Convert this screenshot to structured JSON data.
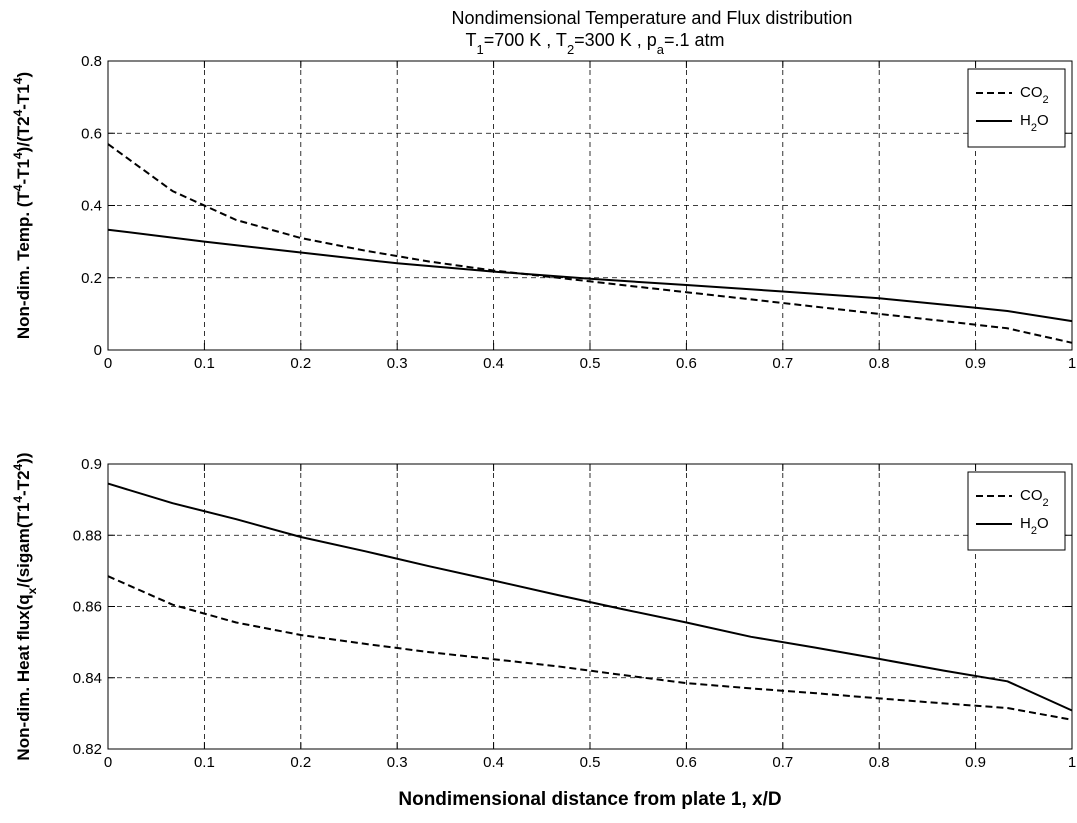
{
  "chart_data": [
    {
      "type": "line",
      "title_line1": "Nondimensional Temperature and Flux distribution",
      "title_line2": {
        "parts": [
          {
            "t": "T"
          },
          {
            "t": "1",
            "sub": true
          },
          {
            "t": "=700 K  ,  T"
          },
          {
            "t": "2",
            "sub": true
          },
          {
            "t": "=300 K  ,  p"
          },
          {
            "t": "a",
            "sub": true
          },
          {
            "t": "=.1 atm"
          }
        ]
      },
      "ylabel": {
        "parts": [
          {
            "t": "Non-dim. Temp. (T"
          },
          {
            "t": "4",
            "sup": true
          },
          {
            "t": "-T1"
          },
          {
            "t": "4",
            "sup": true
          },
          {
            "t": ")/(T2"
          },
          {
            "t": "4",
            "sup": true
          },
          {
            "t": "-T1"
          },
          {
            "t": "4",
            "sup": true
          },
          {
            "t": ")"
          }
        ]
      },
      "xlabel": "",
      "xlim": [
        0,
        1
      ],
      "ylim": [
        0,
        0.8
      ],
      "xticks": [
        "0",
        "0.1",
        "0.2",
        "0.3",
        "0.4",
        "0.5",
        "0.6",
        "0.7",
        "0.8",
        "0.9",
        "1"
      ],
      "yticks": [
        "0",
        "0.2",
        "0.4",
        "0.6",
        "0.8"
      ],
      "grid": true,
      "legend_position": "top-right",
      "series": [
        {
          "name": "CO2",
          "label_main": "CO",
          "label_sub": "2",
          "style": "dashed",
          "x": [
            0,
            0.067,
            0.133,
            0.2,
            0.267,
            0.333,
            0.4,
            0.467,
            0.533,
            0.6,
            0.667,
            0.733,
            0.8,
            0.867,
            0.933,
            1.0
          ],
          "y": [
            0.57,
            0.44,
            0.36,
            0.31,
            0.275,
            0.245,
            0.22,
            0.2,
            0.18,
            0.16,
            0.14,
            0.12,
            0.1,
            0.08,
            0.06,
            0.02
          ]
        },
        {
          "name": "H2O",
          "label_main": "H",
          "label_sub": "2",
          "label_rest": "O",
          "style": "solid",
          "x": [
            0,
            0.1,
            0.2,
            0.3,
            0.4,
            0.5,
            0.6,
            0.7,
            0.8,
            0.9,
            0.933,
            1.0
          ],
          "y": [
            0.333,
            0.3,
            0.27,
            0.24,
            0.217,
            0.197,
            0.18,
            0.162,
            0.143,
            0.117,
            0.108,
            0.08
          ]
        }
      ]
    },
    {
      "type": "line",
      "ylabel": {
        "parts": [
          {
            "t": "Non-dim. Heat flux(q"
          },
          {
            "t": "x",
            "sub": true
          },
          {
            "t": "/(sigam(T1"
          },
          {
            "t": "4",
            "sup": true
          },
          {
            "t": "-T2"
          },
          {
            "t": "4",
            "sup": true
          },
          {
            "t": "))"
          }
        ]
      },
      "xlabel": "Nondimensional distance from plate 1, x/D",
      "xlim": [
        0,
        1
      ],
      "ylim": [
        0.82,
        0.9
      ],
      "xticks": [
        "0",
        "0.1",
        "0.2",
        "0.3",
        "0.4",
        "0.5",
        "0.6",
        "0.7",
        "0.8",
        "0.9",
        "1"
      ],
      "yticks": [
        "0.82",
        "0.84",
        "0.86",
        "0.88",
        "0.9"
      ],
      "grid": true,
      "legend_position": "top-right",
      "series": [
        {
          "name": "CO2",
          "label_main": "CO",
          "label_sub": "2",
          "style": "dashed",
          "x": [
            0,
            0.067,
            0.133,
            0.2,
            0.267,
            0.333,
            0.4,
            0.467,
            0.533,
            0.6,
            0.667,
            0.733,
            0.8,
            0.867,
            0.933,
            1.0
          ],
          "y": [
            0.8685,
            0.8605,
            0.8555,
            0.852,
            0.8495,
            0.8472,
            0.8452,
            0.8432,
            0.8408,
            0.8385,
            0.837,
            0.8357,
            0.8342,
            0.8328,
            0.8315,
            0.8282
          ]
        },
        {
          "name": "H2O",
          "label_main": "H",
          "label_sub": "2",
          "label_rest": "O",
          "style": "solid",
          "x": [
            0,
            0.067,
            0.133,
            0.2,
            0.267,
            0.333,
            0.4,
            0.467,
            0.533,
            0.6,
            0.667,
            0.733,
            0.8,
            0.867,
            0.933,
            1.0
          ],
          "y": [
            0.8945,
            0.889,
            0.8845,
            0.8795,
            0.8755,
            0.8713,
            0.8673,
            0.8632,
            0.8593,
            0.8555,
            0.8515,
            0.8485,
            0.8453,
            0.842,
            0.839,
            0.8308
          ]
        }
      ]
    }
  ]
}
